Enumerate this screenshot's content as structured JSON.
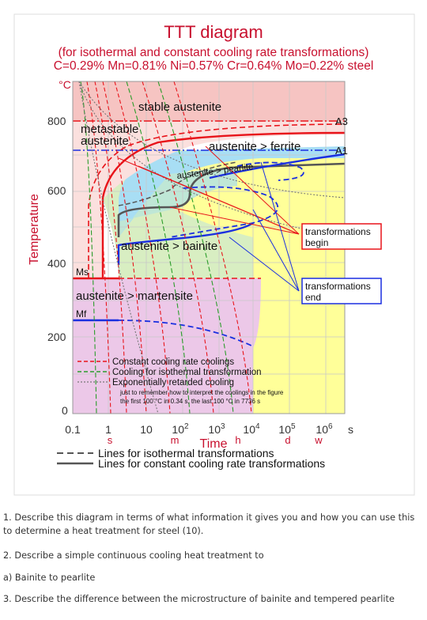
{
  "diagram": {
    "title": "TTT diagram",
    "subtitle": "(for isothermal and constant cooling rate transformations)",
    "composition": "C=0.29% Mn=0.81% Ni=0.57% Cr=0.64% Mo=0.22% steel",
    "y_unit": "°C",
    "y_axis_label": "Temperature",
    "y_ticks": [
      {
        "label": "800",
        "value": 800
      },
      {
        "label": "600",
        "value": 600
      },
      {
        "label": "400",
        "value": 400
      },
      {
        "label": "200",
        "value": 200
      },
      {
        "label": "0",
        "value": 0
      }
    ],
    "x_axis_label": "Time",
    "x_ticks": [
      {
        "label": "0.1",
        "log": -1
      },
      {
        "label": "1",
        "log": 0
      },
      {
        "label": "10",
        "log": 1
      },
      {
        "label": "10",
        "sup": "2",
        "log": 2
      },
      {
        "label": "10",
        "sup": "3",
        "log": 3
      },
      {
        "label": "10",
        "sup": "4",
        "log": 4
      },
      {
        "label": "10",
        "sup": "5",
        "log": 5
      },
      {
        "label": "10",
        "sup": "6",
        "log": 6
      }
    ],
    "x_unit_s": "s",
    "time_units": [
      {
        "label": "s",
        "log": 0
      },
      {
        "label": "m",
        "log": 1.78
      },
      {
        "label": "h",
        "log": 3.56
      },
      {
        "label": "d",
        "log": 4.94
      },
      {
        "label": "w",
        "log": 5.78
      }
    ],
    "regions": {
      "stable_austenite": "stable austenite",
      "metastable_1": "metastable",
      "metastable_2": "austenite",
      "ferrite": "austenite > ferrite",
      "pearlite": "austenite > pearlite",
      "bainite": "austenite > bainite",
      "martensite": "austenite > martensite"
    },
    "lines": {
      "A3": "A3",
      "A1": "A1",
      "Ms": "Ms",
      "Mf": "Mf",
      "A3_temp": 840,
      "A1_temp": 727,
      "Ms_temp": 385,
      "Mf_temp": 255
    },
    "boxes": {
      "begin_1": "transformations",
      "begin_2": "begin",
      "end_1": "transformations",
      "end_2": "end"
    },
    "legend": {
      "item1": "Constant cooling rate coolings",
      "item2": "Cooling for isothermal transformation",
      "item3": "Exponentially retarded cooling",
      "note1": "just to remember how to interpret the coolings in the figure",
      "note2": "the first 100 °C in 0.34 s, the last 100 °C in 7736 s"
    },
    "bottom_legend": {
      "isothermal": "Lines for isothermal transformations",
      "constant": "Lines for constant cooling rate transformations"
    },
    "colors": {
      "stable_austenite": "#f6c4c2",
      "ferrite": "#a8def4",
      "pearlite": "#ffff99",
      "bainite": "#d8eec2",
      "martensite": "#ecc8e8",
      "red": "#e8141a",
      "blue": "#1a2fe0",
      "gray": "#555555"
    }
  },
  "questions": {
    "q1": "1. Describe this diagram in terms of what information it gives you and how you can use this to determine a heat treatment for steel (10).",
    "q2": "2. Describe a simple continuous cooling heat treatment to",
    "q2a": "a) Bainite to pearlite",
    "q3": "3. Describe the difference between the microstructure of bainite and tempered pearlite"
  }
}
